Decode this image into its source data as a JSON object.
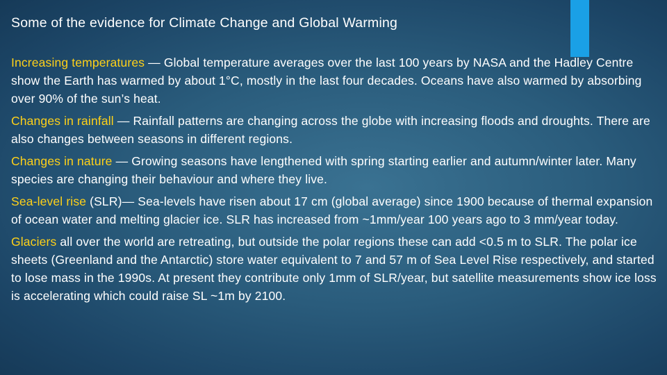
{
  "slide": {
    "title": "Some of the evidence for Climate Change and Global Warming",
    "paragraphs": [
      {
        "highlight": "Increasing temperatures",
        "text": " — Global temperature averages over the last 100 years by NASA and the Hadley Centre show the Earth has warmed by about 1°C, mostly in the last four decades. Oceans have also warmed by absorbing over 90% of the sun’s heat."
      },
      {
        "highlight": "Changes in rainfall",
        "text": " — Rainfall patterns are changing across the globe with increasing floods and droughts. There are also changes between seasons in different regions."
      },
      {
        "highlight": "Changes in nature",
        "text": " — Growing seasons have lengthened with spring starting earlier and autumn/winter later. Many species are changing their behaviour and where they live."
      },
      {
        "highlight": "Sea-level rise",
        "text": " (SLR)— Sea-levels have risen about 17 cm (global average) since 1900 because of thermal expansion of ocean water and melting glacier ice. SLR has increased from ~1mm/year 100 years ago to 3 mm/year today."
      },
      {
        "highlight": "Glaciers",
        "text": " all over the world are retreating, but outside the polar regions these can add <0.5 m to SLR. The polar ice sheets (Greenland and the Antarctic) store water equivalent to 7 and 57 m of Sea Level Rise respectively, and started to lose mass in the 1990s. At present they contribute only 1mm of SLR/year, but satellite measurements show ice loss is accelerating which could raise SL ~1m by 2100."
      }
    ]
  },
  "colors": {
    "highlight": "#ffd119",
    "accent_bar": "#1aa0e6",
    "text": "#ffffff"
  }
}
